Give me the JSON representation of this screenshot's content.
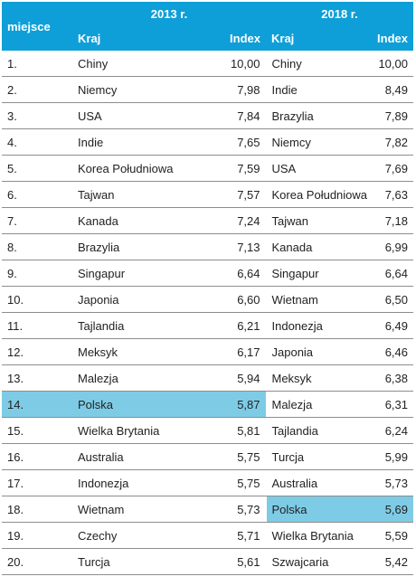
{
  "header": {
    "rank_label": "miejsce",
    "year_a": "2013 r.",
    "year_b": "2018 r.",
    "country_label": "Kraj",
    "index_label": "Index"
  },
  "highlight": "#7ecbe5",
  "rows": [
    {
      "rank": "1.",
      "a_country": "Chiny",
      "a_index": "10,00",
      "b_country": "Chiny",
      "b_index": "10,00"
    },
    {
      "rank": "2.",
      "a_country": "Niemcy",
      "a_index": "7,98",
      "b_country": "Indie",
      "b_index": "8,49"
    },
    {
      "rank": "3.",
      "a_country": "USA",
      "a_index": "7,84",
      "b_country": "Brazylia",
      "b_index": "7,89"
    },
    {
      "rank": "4.",
      "a_country": "Indie",
      "a_index": "7,65",
      "b_country": "Niemcy",
      "b_index": "7,82"
    },
    {
      "rank": "5.",
      "a_country": "Korea Południowa",
      "a_index": "7,59",
      "b_country": "USA",
      "b_index": "7,69"
    },
    {
      "rank": "6.",
      "a_country": "Tajwan",
      "a_index": "7,57",
      "b_country": "Korea Południowa",
      "b_index": "7,63"
    },
    {
      "rank": "7.",
      "a_country": "Kanada",
      "a_index": "7,24",
      "b_country": "Tajwan",
      "b_index": "7,18"
    },
    {
      "rank": "8.",
      "a_country": "Brazylia",
      "a_index": "7,13",
      "b_country": "Kanada",
      "b_index": "6,99"
    },
    {
      "rank": "9.",
      "a_country": "Singapur",
      "a_index": "6,64",
      "b_country": "Singapur",
      "b_index": "6,64"
    },
    {
      "rank": "10.",
      "a_country": "Japonia",
      "a_index": "6,60",
      "b_country": "Wietnam",
      "b_index": "6,50"
    },
    {
      "rank": "11.",
      "a_country": "Tajlandia",
      "a_index": "6,21",
      "b_country": "Indonezja",
      "b_index": "6,49"
    },
    {
      "rank": "12.",
      "a_country": "Meksyk",
      "a_index": "6,17",
      "b_country": "Japonia",
      "b_index": "6,46"
    },
    {
      "rank": "13.",
      "a_country": "Malezja",
      "a_index": "5,94",
      "b_country": "Meksyk",
      "b_index": "6,38"
    },
    {
      "rank": "14.",
      "a_country": "Polska",
      "a_index": "5,87",
      "b_country": "Malezja",
      "b_index": "6,31",
      "hl_a": true
    },
    {
      "rank": "15.",
      "a_country": "Wielka Brytania",
      "a_index": "5,81",
      "b_country": "Tajlandia",
      "b_index": "6,24"
    },
    {
      "rank": "16.",
      "a_country": "Australia",
      "a_index": "5,75",
      "b_country": "Turcja",
      "b_index": "5,99"
    },
    {
      "rank": "17.",
      "a_country": "Indonezja",
      "a_index": "5,75",
      "b_country": "Australia",
      "b_index": "5,73"
    },
    {
      "rank": "18.",
      "a_country": "Wietnam",
      "a_index": "5,73",
      "b_country": "Polska",
      "b_index": "5,69",
      "hl_b": true
    },
    {
      "rank": "19.",
      "a_country": "Czechy",
      "a_index": "5,71",
      "b_country": "Wielka Brytania",
      "b_index": "5,59"
    },
    {
      "rank": "20.",
      "a_country": "Turcja",
      "a_index": "5,61",
      "b_country": "Szwajcaria",
      "b_index": "5,42"
    }
  ]
}
